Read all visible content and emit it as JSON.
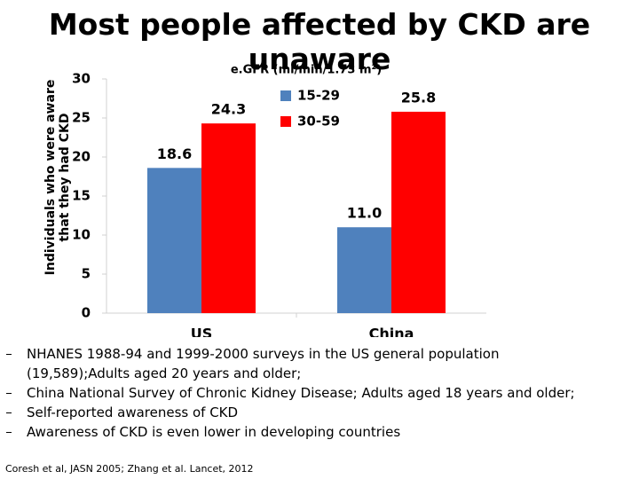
{
  "chart_data": {
    "type": "bar",
    "title": "Most people affected by CKD are unaware",
    "y_label": [
      "Individuals who were aware",
      "that they had CKD"
    ],
    "legend_title": "e.GFR (ml/min/1.73 m²)",
    "categories": [
      "US",
      "China"
    ],
    "series": [
      {
        "name": "15-29",
        "color": "#4f81bd",
        "values": [
          18.6,
          11
        ],
        "value_labels": [
          "18.6",
          "11.0"
        ]
      },
      {
        "name": "30-59",
        "color": "#ff0000",
        "values": [
          24.3,
          25.8
        ],
        "value_labels": [
          "24.3",
          "25.8"
        ]
      }
    ],
    "ylim": [
      0,
      30
    ],
    "yticks": [
      0,
      5,
      10,
      15,
      20,
      25,
      30
    ],
    "grid": false
  },
  "notes": [
    "NHANES 1988-94 and 1999-2000 surveys in the US general population (19,589);Adults aged 20 years and older;",
    "China National Survey of Chronic Kidney Disease; Adults aged 18 years and older;",
    "Self-reported awareness of CKD",
    "Awareness of CKD is even lower in developing countries"
  ],
  "citation": "Coresh et al, JASN 2005; Zhang et al.  Lancet, 2012"
}
